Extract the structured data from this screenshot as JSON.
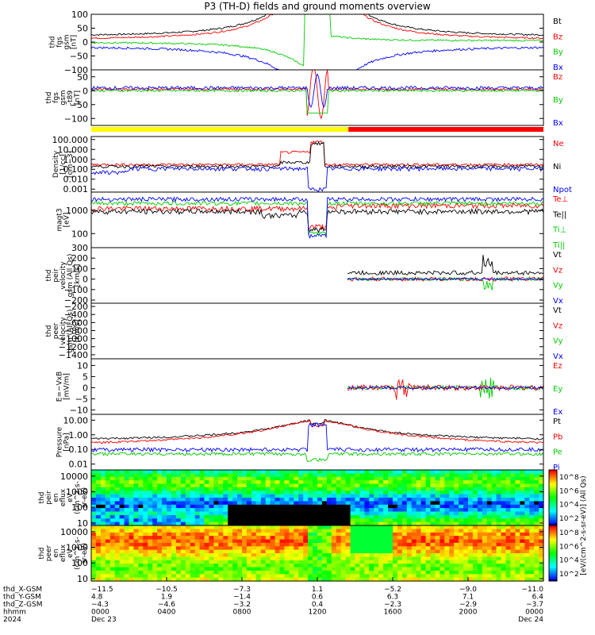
{
  "chart_data": {
    "type": "line",
    "title": "P3 (TH-D) fields and ground moments overview",
    "panels": [
      {
        "id": "fgs",
        "ylabel": [
          "thd",
          "fgs",
          "gsm",
          "[nT]"
        ],
        "yticks": [
          "100",
          "50",
          "0",
          "−50",
          "−100"
        ],
        "ylim": [
          -100,
          100
        ],
        "legend": [
          {
            "name": "Bt",
            "color": "#000000"
          },
          {
            "name": "Bz",
            "color": "#ff0000"
          },
          {
            "name": "By",
            "color": "#00cc00"
          },
          {
            "name": "Bx",
            "color": "#0000ff"
          }
        ]
      },
      {
        "id": "fgs-t89",
        "ylabel": [
          "thd",
          "fgs",
          "gsm",
          "-t89",
          "[nT]"
        ],
        "yticks": [
          "50",
          "0",
          "−50",
          "−100"
        ],
        "ylim": [
          -125,
          75
        ],
        "legend": [
          {
            "name": "Bz",
            "color": "#ff0000"
          },
          {
            "name": "By",
            "color": "#00cc00"
          },
          {
            "name": "Bx",
            "color": "#0000ff"
          }
        ]
      },
      {
        "id": "density",
        "ylabel": [
          "Density",
          "[1/cc]",
          "[cm−3]"
        ],
        "yticks": [
          "100.000",
          "10.000",
          "1.000",
          "0.100",
          "0.010",
          "0.001"
        ],
        "ylim": [
          0.0005,
          200
        ],
        "log": true,
        "legend": [
          {
            "name": "Ne",
            "color": "#ff0000"
          },
          {
            "name": "Ni",
            "color": "#000000"
          },
          {
            "name": "Npot",
            "color": "#0000ff"
          }
        ]
      },
      {
        "id": "temp",
        "ylabel": [
          "magt3",
          "[eV]"
        ],
        "yticks": [
          "1000",
          "100"
        ],
        "ylim": [
          25,
          6000
        ],
        "log": true,
        "legend": [
          {
            "name": "Te⊥",
            "color": "#ff0000"
          },
          {
            "name": "Te||",
            "color": "#000000"
          },
          {
            "name": "Ti⊥",
            "color": "#00cc00"
          },
          {
            "name": "Ti||",
            "color": "#00cc00"
          }
        ]
      },
      {
        "id": "ion-velocity",
        "ylabel": [
          "thd",
          "peir",
          "velocity",
          "gsm (All Qs)",
          "[km/s]"
        ],
        "yticks": [
          "300",
          "200",
          "100",
          "0",
          "−100",
          "−200"
        ],
        "ylim": [
          -230,
          300
        ],
        "legend": [
          {
            "name": "Vt",
            "color": "#000000"
          },
          {
            "name": "Vz",
            "color": "#ff0000"
          },
          {
            "name": "Vy",
            "color": "#00cc00"
          },
          {
            "name": "Vx",
            "color": "#0000ff"
          }
        ]
      },
      {
        "id": "electron-velocity",
        "ylabel": [
          "thd",
          "peer",
          "velocity",
          "gsm (All Qs)",
          "[km/s]"
        ],
        "yticks": [
          "−200",
          "−400",
          "−600",
          "−800",
          "−1000",
          "−1200",
          "−1400"
        ],
        "ylim": [
          -1500,
          -120
        ],
        "legend": [
          {
            "name": "Vt",
            "color": "#000000"
          },
          {
            "name": "Vz",
            "color": "#ff0000"
          },
          {
            "name": "Vy",
            "color": "#00cc00"
          },
          {
            "name": "Vx",
            "color": "#0000ff"
          }
        ]
      },
      {
        "id": "efield",
        "ylabel": [
          "E=−VxB",
          "[mV/m]"
        ],
        "yticks": [
          "10",
          "5",
          "0",
          "−5",
          "−10"
        ],
        "ylim": [
          -12,
          13
        ],
        "legend": [
          {
            "name": "Ez",
            "color": "#ff0000"
          },
          {
            "name": "Ey",
            "color": "#00cc00"
          },
          {
            "name": "Ex",
            "color": "#0000ff"
          }
        ]
      },
      {
        "id": "pressure",
        "ylabel": [
          "Pressure",
          "[nPa]"
        ],
        "yticks": [
          "10.00",
          "1.00",
          "0.10",
          "0.01"
        ],
        "ylim": [
          0.004,
          25
        ],
        "log": true,
        "legend": [
          {
            "name": "Pt",
            "color": "#000000"
          },
          {
            "name": "Pb",
            "color": "#ff0000"
          },
          {
            "name": "Pe",
            "color": "#00cc00"
          },
          {
            "name": "Pi",
            "color": "#0000ff"
          }
        ]
      },
      {
        "id": "ion-spectrogram",
        "type": "heatmap",
        "ylabel": [
          "thd",
          "peir",
          "en",
          "eflux",
          "eV",
          "(cm^2-s-",
          "sr-eV)"
        ],
        "yticks": [
          "10000",
          "1000",
          "100",
          "10"
        ],
        "ylim": [
          7,
          25000
        ],
        "log": true
      },
      {
        "id": "electron-spectrogram",
        "type": "heatmap",
        "ylabel": [
          "thd",
          "peer",
          "en",
          "eflux",
          "eV",
          "(cm^2-s-",
          "sr-eV)"
        ],
        "yticks": [
          "10000",
          "1000",
          "100",
          "10"
        ],
        "ylim": [
          7,
          25000
        ],
        "log": true
      }
    ],
    "colorbar": {
      "label": "[eV/(cm^2-s-sr-eV)]",
      "label2": "[eV/(cm^2-s-sr-eV)] (All Qs)",
      "ticks_ion": [
        "10^8",
        "10^6",
        "10^4",
        "10^2"
      ],
      "ticks_electron": [
        "10^8",
        "10^6",
        "10^4",
        "10^2"
      ]
    },
    "x_axis": {
      "row_labels": [
        "thd_X-GSM",
        "thd_Y-GSM",
        "thd_Z-GSM",
        "hhmm",
        "2024"
      ],
      "columns": [
        {
          "values": [
            "−11.5",
            "4.8",
            "−4.3",
            "0000",
            "Dec 23"
          ]
        },
        {
          "values": [
            "−10.5",
            "1.9",
            "−4.6",
            "0400",
            ""
          ]
        },
        {
          "values": [
            "−7.3",
            "−1.4",
            "−3.2",
            "0800",
            ""
          ]
        },
        {
          "values": [
            "1.1",
            "0.6",
            "0.4",
            "1200",
            ""
          ]
        },
        {
          "values": [
            "−5.2",
            "6.3",
            "−2.3",
            "1600",
            ""
          ]
        },
        {
          "values": [
            "−9.0",
            "7.1",
            "−2.9",
            "2000",
            ""
          ]
        },
        {
          "values": [
            "−11.0",
            "6.4",
            "−3.7",
            "0000",
            "Dec 24"
          ]
        }
      ]
    },
    "mode_bar": {
      "segments": [
        {
          "from_hour": 0,
          "to_hour": 13.65,
          "color": "#ffff00"
        },
        {
          "from_hour": 13.65,
          "to_hour": 24,
          "color": "#ff0000"
        }
      ]
    },
    "colors": {
      "black": "#000000",
      "red": "#ff0000",
      "green": "#00cc00",
      "blue": "#0000ff"
    }
  }
}
